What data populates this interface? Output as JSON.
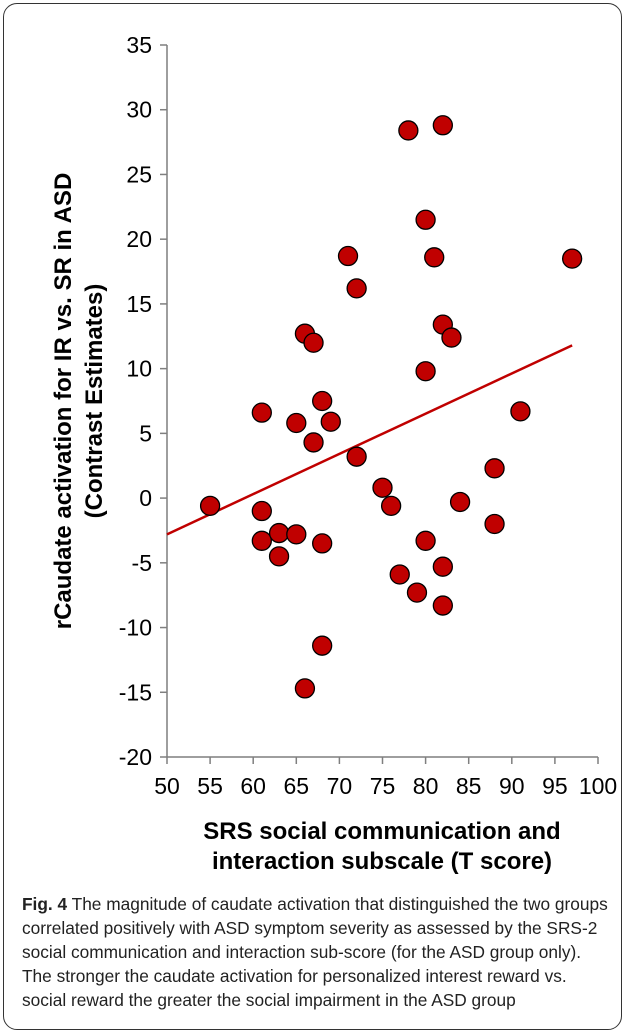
{
  "figure": {
    "label": "Fig. 4",
    "caption": "The magnitude of caudate activation that distinguished the two groups correlated positively with ASD symptom severity as assessed by the SRS-2 social communication and interaction sub-score (for the ASD group only). The stronger the caudate activation for personalized interest reward vs. social reward the greater the social impairment in the ASD group"
  },
  "chart_data": {
    "type": "scatter",
    "title": "",
    "xlabel": [
      "SRS social communication and",
      "interaction subscale (T score)"
    ],
    "ylabel": [
      "rCaudate activation for IR vs. SR in ASD",
      "(Contrast Estimates)"
    ],
    "xlim": [
      50,
      100
    ],
    "ylim": [
      -20,
      35
    ],
    "x_ticks": [
      50,
      55,
      60,
      65,
      70,
      75,
      80,
      85,
      90,
      95,
      100
    ],
    "y_ticks": [
      35,
      30,
      25,
      20,
      15,
      10,
      5,
      0,
      -5,
      -10,
      -15,
      -20
    ],
    "grid": false,
    "legend": "none",
    "marker_color": "#c00000",
    "line_color": "#c00000",
    "trendline": {
      "x": [
        50,
        97
      ],
      "y": [
        -2.8,
        11.8
      ]
    },
    "points": [
      [
        55,
        -0.6
      ],
      [
        61,
        6.6
      ],
      [
        61,
        -1.0
      ],
      [
        61,
        -3.3
      ],
      [
        63,
        -2.7
      ],
      [
        63,
        -4.5
      ],
      [
        65,
        5.8
      ],
      [
        65,
        -2.8
      ],
      [
        66,
        12.7
      ],
      [
        66,
        -14.7
      ],
      [
        67,
        12.0
      ],
      [
        67,
        4.3
      ],
      [
        68,
        7.5
      ],
      [
        68,
        -3.5
      ],
      [
        68,
        -11.4
      ],
      [
        69,
        5.9
      ],
      [
        71,
        18.7
      ],
      [
        72,
        16.2
      ],
      [
        72,
        3.2
      ],
      [
        75,
        0.8
      ],
      [
        76,
        -0.6
      ],
      [
        77,
        -5.9
      ],
      [
        78,
        28.4
      ],
      [
        79,
        -7.3
      ],
      [
        80,
        21.5
      ],
      [
        80,
        9.8
      ],
      [
        80,
        -3.3
      ],
      [
        81,
        18.6
      ],
      [
        82,
        28.8
      ],
      [
        82,
        13.4
      ],
      [
        82,
        -5.3
      ],
      [
        82,
        -8.3
      ],
      [
        83,
        12.4
      ],
      [
        84,
        -0.3
      ],
      [
        88,
        2.3
      ],
      [
        88,
        -2.0
      ],
      [
        91,
        6.7
      ],
      [
        97,
        18.5
      ]
    ]
  }
}
